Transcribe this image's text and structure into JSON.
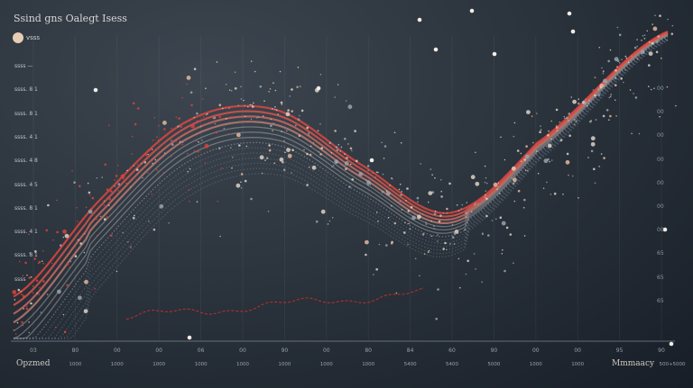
{
  "chart_data": {
    "type": "line",
    "title": "Ssind gns Oalegt Isess",
    "legend": {
      "label": "vsss",
      "color": "#e6cdb4",
      "placement": "top-left"
    },
    "y_tick_labels_left": [
      "ssss —",
      "ssss. 8 1",
      "ssss. 8 1",
      "ssss. 4 1",
      "ssss. 4 8",
      "ssss. 4 5",
      "ssss. 8 1",
      "ssss. 4 1",
      "ssss. 8 1",
      "ssss"
    ],
    "y_tick_labels_right": [
      "00",
      "00",
      "00",
      "00",
      "00",
      "00",
      "00",
      "65",
      "65",
      "65"
    ],
    "x_tick_labels": [
      "03",
      "80",
      "00",
      "00",
      "06",
      "00",
      "90",
      "00",
      "80",
      "84",
      "60",
      "90",
      "00",
      "00",
      "95",
      "90"
    ],
    "x_sub_labels": [
      "1000",
      "1000",
      "1000",
      "1000",
      "1000",
      "1000",
      "1000",
      "1000",
      "5400",
      "5400",
      "5000",
      "1000",
      "1000",
      "",
      "500+5000"
    ],
    "xlabel_left": "Opzmed",
    "xlabel_right": "Mmmaacy",
    "grid": true,
    "colors": {
      "accent": "#d8453c",
      "band": "#8a9099",
      "dots": "#e8d8c8",
      "background": "#2c343d"
    },
    "series_shape": {
      "x": [
        0,
        2,
        4,
        6,
        8,
        10,
        12,
        15
      ],
      "y": [
        0.5,
        4,
        6.8,
        7.2,
        5.2,
        3.5,
        6,
        10
      ]
    }
  }
}
